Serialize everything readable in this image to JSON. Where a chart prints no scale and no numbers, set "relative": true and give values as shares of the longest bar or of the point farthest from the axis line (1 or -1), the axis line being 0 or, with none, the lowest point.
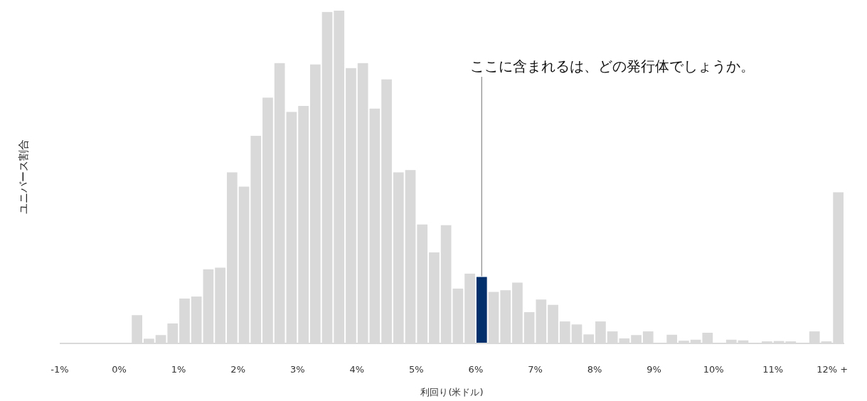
{
  "chart_data": {
    "type": "bar",
    "relative": true,
    "tick_labels": "x",
    "xlabel": "利回り(米ドル)",
    "ylabel": "ユニバース割合",
    "annotations": [
      {
        "text": "ここに含まれるは、どの発行体でしょうか。",
        "x": 6.1,
        "y": 0.198
      }
    ],
    "xlim": [
      -1,
      12.2
    ],
    "xticks": [
      {
        "value": -1,
        "label": "-1%"
      },
      {
        "value": 0,
        "label": "0%"
      },
      {
        "value": 1,
        "label": "1%"
      },
      {
        "value": 2,
        "label": "2%"
      },
      {
        "value": 3,
        "label": "3%"
      },
      {
        "value": 4,
        "label": "4%"
      },
      {
        "value": 5,
        "label": "5%"
      },
      {
        "value": 6,
        "label": "6%"
      },
      {
        "value": 7,
        "label": "7%"
      },
      {
        "value": 8,
        "label": "8%"
      },
      {
        "value": 9,
        "label": "9%"
      },
      {
        "value": 10,
        "label": "10%"
      },
      {
        "value": 11,
        "label": "11%"
      },
      {
        "value": 12,
        "label": "12% +"
      }
    ],
    "x": [
      -0.9,
      -0.7,
      -0.5,
      -0.3,
      -0.1,
      0.1,
      0.3,
      0.5,
      0.7,
      0.9,
      1.1,
      1.3,
      1.5,
      1.7,
      1.9,
      2.1,
      2.3,
      2.5,
      2.7,
      2.9,
      3.1,
      3.3,
      3.5,
      3.7,
      3.9,
      4.1,
      4.3,
      4.5,
      4.7,
      4.9,
      5.1,
      5.3,
      5.5,
      5.7,
      5.9,
      6.1,
      6.3,
      6.5,
      6.7,
      6.9,
      7.1,
      7.3,
      7.5,
      7.7,
      7.9,
      8.1,
      8.3,
      8.5,
      8.7,
      8.9,
      9.1,
      9.3,
      9.5,
      9.7,
      9.9,
      10.1,
      10.3,
      10.5,
      10.7,
      10.9,
      11.1,
      11.3,
      11.5,
      11.7,
      11.9,
      12.1
    ],
    "values": [
      0,
      0,
      0,
      0,
      0,
      0,
      0.083,
      0.012,
      0.023,
      0.058,
      0.133,
      0.139,
      0.221,
      0.226,
      0.513,
      0.47,
      0.623,
      0.738,
      0.842,
      0.695,
      0.713,
      0.838,
      0.996,
      1.0,
      0.827,
      0.842,
      0.705,
      0.793,
      0.513,
      0.52,
      0.356,
      0.272,
      0.354,
      0.163,
      0.208,
      0.198,
      0.153,
      0.158,
      0.181,
      0.092,
      0.13,
      0.114,
      0.064,
      0.055,
      0.025,
      0.064,
      0.034,
      0.013,
      0.023,
      0.034,
      0,
      0.024,
      0.006,
      0.009,
      0.03,
      0,
      0.009,
      0.007,
      0,
      0.004,
      0.005,
      0.004,
      0,
      0.034,
      0.004,
      0.453
    ],
    "colors": [
      "#d9d9d9",
      "#d9d9d9",
      "#d9d9d9",
      "#d9d9d9",
      "#d9d9d9",
      "#d9d9d9",
      "#d9d9d9",
      "#d9d9d9",
      "#d9d9d9",
      "#d9d9d9",
      "#d9d9d9",
      "#d9d9d9",
      "#d9d9d9",
      "#d9d9d9",
      "#d9d9d9",
      "#d9d9d9",
      "#d9d9d9",
      "#d9d9d9",
      "#d9d9d9",
      "#d9d9d9",
      "#d9d9d9",
      "#d9d9d9",
      "#d9d9d9",
      "#d9d9d9",
      "#d9d9d9",
      "#d9d9d9",
      "#d9d9d9",
      "#d9d9d9",
      "#d9d9d9",
      "#d9d9d9",
      "#d9d9d9",
      "#d9d9d9",
      "#d9d9d9",
      "#d9d9d9",
      "#d9d9d9",
      "#002f6c",
      "#d9d9d9",
      "#d9d9d9",
      "#d9d9d9",
      "#d9d9d9",
      "#d9d9d9",
      "#d9d9d9",
      "#d9d9d9",
      "#d9d9d9",
      "#d9d9d9",
      "#d9d9d9",
      "#d9d9d9",
      "#d9d9d9",
      "#d9d9d9",
      "#d9d9d9",
      "#d9d9d9",
      "#d9d9d9",
      "#d9d9d9",
      "#d9d9d9",
      "#d9d9d9",
      "#d9d9d9",
      "#d9d9d9",
      "#d9d9d9",
      "#d9d9d9",
      "#d9d9d9",
      "#d9d9d9",
      "#d9d9d9",
      "#d9d9d9",
      "#d9d9d9",
      "#d9d9d9",
      "#d9d9d9"
    ]
  }
}
